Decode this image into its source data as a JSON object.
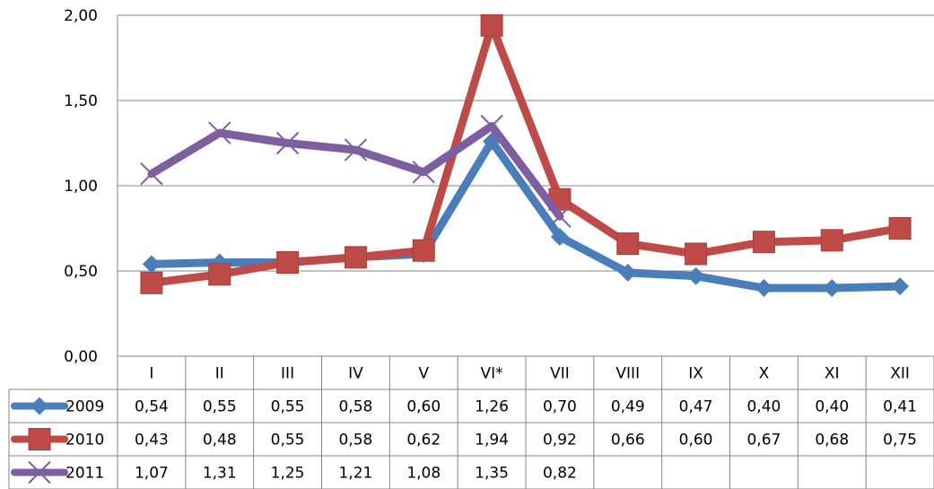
{
  "chart_data": {
    "type": "line",
    "title": "",
    "xlabel": "",
    "ylabel": "",
    "categories": [
      "I",
      "II",
      "III",
      "IV",
      "V",
      "VI*",
      "VII",
      "VIII",
      "IX",
      "X",
      "XI",
      "XII"
    ],
    "ylim": [
      0,
      2
    ],
    "ytick_labels": [
      "0,00",
      "0,50",
      "1,00",
      "1,50",
      "2,00"
    ],
    "grid": true,
    "legend": "data-table",
    "series": [
      {
        "name": "2009",
        "color": "#4a7ebb",
        "marker": "diamond",
        "values": [
          0.54,
          0.55,
          0.55,
          0.58,
          0.6,
          1.26,
          0.7,
          0.49,
          0.47,
          0.4,
          0.4,
          0.41
        ],
        "labels": [
          "0,54",
          "0,55",
          "0,55",
          "0,58",
          "0,60",
          "1,26",
          "0,70",
          "0,49",
          "0,47",
          "0,40",
          "0,40",
          "0,41"
        ]
      },
      {
        "name": "2010",
        "color": "#be4b48",
        "marker": "square",
        "values": [
          0.43,
          0.48,
          0.55,
          0.58,
          0.62,
          1.94,
          0.92,
          0.66,
          0.6,
          0.67,
          0.68,
          0.75
        ],
        "labels": [
          "0,43",
          "0,48",
          "0,55",
          "0,58",
          "0,62",
          "1,94",
          "0,92",
          "0,66",
          "0,60",
          "0,67",
          "0,68",
          "0,75"
        ]
      },
      {
        "name": "2011",
        "color": "#7d5fa0",
        "marker": "x",
        "values": [
          1.07,
          1.31,
          1.25,
          1.21,
          1.08,
          1.35,
          0.82,
          null,
          null,
          null,
          null,
          null
        ],
        "labels": [
          "1,07",
          "1,31",
          "1,25",
          "1,21",
          "1,08",
          "1,35",
          "0,82",
          "",
          "",
          "",
          "",
          ""
        ]
      }
    ]
  }
}
